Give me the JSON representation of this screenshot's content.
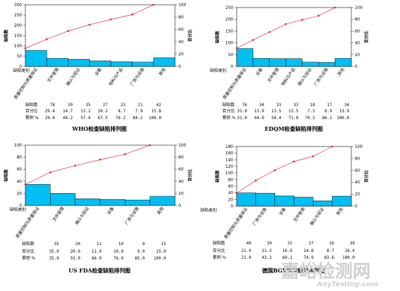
{
  "common": {
    "ylabel_left": "缺陷数",
    "ylabel_right": "百分比",
    "xlabel": "缺陷类别",
    "row_labels": [
      "缺陷数",
      "百分比",
      "累积 %"
    ]
  },
  "watermark": {
    "text": "嘉峪检测网",
    "url": "AnyTesting.com"
  },
  "chart_data": [
    {
      "type": "bar",
      "title": "WHO检查缺陷排列图",
      "categories": [
        "质量控制与质量保证",
        "文件管理",
        "确认与验证",
        "设备",
        "物料与产品",
        "厂房与设施",
        "其他"
      ],
      "values": [
        78,
        39,
        35,
        27,
        23,
        21,
        42
      ],
      "percent": [
        "29.4",
        "14.7",
        "13.2",
        "10.2",
        "8.7",
        "7.9",
        "15.8"
      ],
      "cumulative": [
        "29.4",
        "44.2",
        "57.4",
        "67.5",
        "76.2",
        "84.2",
        "100.0"
      ],
      "ylim": [
        0,
        300
      ],
      "yticks": [
        0,
        50,
        100,
        150,
        200,
        250,
        300
      ],
      "y2lim": [
        0,
        100
      ],
      "y2ticks": [
        0,
        20,
        40,
        60,
        80,
        100
      ]
    },
    {
      "type": "bar",
      "title": "EDQM检查缺陷排列图",
      "categories": [
        "质量控制与质量保证",
        "设备",
        "文件管理",
        "物料与产品",
        "确认与验证",
        "厂房与设施",
        "其他"
      ],
      "values": [
        76,
        34,
        33,
        33,
        18,
        17,
        34
      ],
      "percent": [
        "31.0",
        "13.9",
        "13.5",
        "13.5",
        "7.3",
        "6.9",
        "13.9"
      ],
      "cumulative": [
        "31.0",
        "44.9",
        "58.4",
        "71.8",
        "79.2",
        "86.1",
        "100.0"
      ],
      "ylim": [
        0,
        250
      ],
      "yticks": [
        0,
        50,
        100,
        150,
        200,
        250
      ],
      "y2lim": [
        0,
        100
      ],
      "y2ticks": [
        0,
        20,
        40,
        60,
        80,
        100
      ]
    },
    {
      "type": "bar",
      "title": "US FDA检查缺陷排列图",
      "categories": [
        "质量控制与质量保证",
        "文件管理",
        "确认与验证",
        "设备",
        "厂房与设施",
        "其他"
      ],
      "values": [
        35,
        20,
        11,
        10,
        9,
        15
      ],
      "percent": [
        "35.0",
        "20.0",
        "11.0",
        "10.0",
        "9.0",
        "15.0"
      ],
      "cumulative": [
        "35.0",
        "55.0",
        "66.0",
        "76.0",
        "85.0",
        "100.0"
      ],
      "ylim": [
        0,
        100
      ],
      "yticks": [
        0,
        20,
        40,
        60,
        80,
        100
      ],
      "y2lim": [
        0,
        100
      ],
      "y2ticks": [
        0,
        20,
        40,
        60,
        80,
        100
      ]
    },
    {
      "type": "bar",
      "title": "德国BGV检查缺陷排列图",
      "categories": [
        "质量控制与质量保证",
        "厂房与设施",
        "设备",
        "文件管理",
        "确认与验证",
        "其他"
      ],
      "values": [
        40,
        39,
        31,
        27,
        16,
        30
      ],
      "percent": [
        "21.9",
        "21.3",
        "16.9",
        "14.8",
        "8.7",
        "16.4"
      ],
      "cumulative": [
        "21.9",
        "43.2",
        "60.1",
        "74.9",
        "83.6",
        "100.0"
      ],
      "ylim": [
        0,
        180
      ],
      "yticks": [
        0,
        20,
        40,
        60,
        80,
        100,
        120,
        140,
        160,
        180
      ],
      "y2lim": [
        0,
        100
      ],
      "y2ticks": [
        0,
        20,
        40,
        60,
        80,
        100
      ]
    }
  ]
}
